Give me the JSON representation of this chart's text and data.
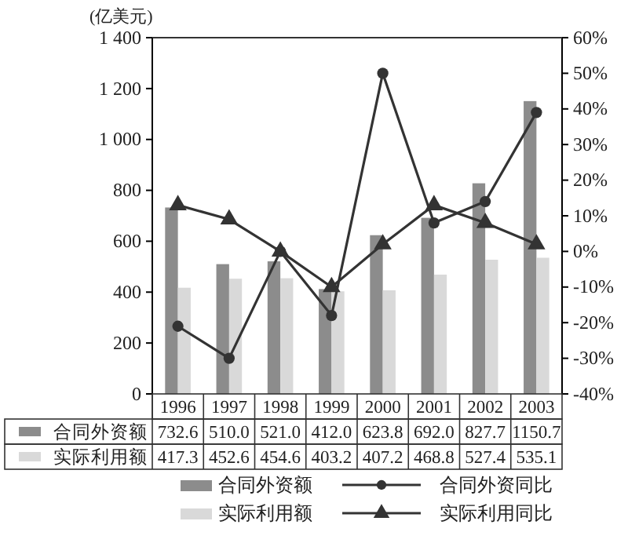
{
  "chart_data": {
    "type": "bar",
    "ylabel": "(亿美元)",
    "categories": [
      "1996",
      "1997",
      "1998",
      "1999",
      "2000",
      "2001",
      "2002",
      "2003"
    ],
    "series": [
      {
        "name": "合同外资额",
        "color": "#8c8c8c",
        "values": [
          732.6,
          510.0,
          521.0,
          412.0,
          623.8,
          692.0,
          827.7,
          1150.7
        ],
        "value_labels": [
          "732.6",
          "510.0",
          "521.0",
          "412.0",
          "623.8",
          "692.0",
          "827.7",
          "1150.7"
        ]
      },
      {
        "name": "实际利用额",
        "color": "#d9d9d9",
        "values": [
          417.3,
          452.6,
          454.6,
          403.2,
          407.2,
          468.8,
          527.4,
          535.1
        ],
        "value_labels": [
          "417.3",
          "452.6",
          "454.6",
          "403.2",
          "407.2",
          "468.8",
          "527.4",
          "535.1"
        ]
      },
      {
        "name": "合同外资同比",
        "type": "line",
        "axis": "y2",
        "marker": "circle",
        "color": "#333333",
        "values": [
          -21,
          -30,
          0,
          -18,
          50,
          8,
          14,
          39
        ]
      },
      {
        "name": "实际利用同比",
        "type": "line",
        "axis": "y2",
        "marker": "triangle",
        "color": "#333333",
        "values": [
          13,
          9,
          0,
          -10,
          2,
          13,
          8,
          2
        ]
      }
    ],
    "ylim": [
      0,
      1400
    ],
    "yticks": [
      0,
      200,
      400,
      600,
      800,
      {
        "value": 1000,
        "label": "1 000"
      },
      {
        "value": 1200,
        "label": "1 200"
      },
      {
        "value": 1400,
        "label": "1 400"
      }
    ],
    "y2lim": [
      -40,
      60
    ],
    "y2ticks": [
      {
        "value": -40,
        "label": "-40%"
      },
      {
        "value": -30,
        "label": "-30%"
      },
      {
        "value": -20,
        "label": "-20%"
      },
      {
        "value": -10,
        "label": "-10%"
      },
      {
        "value": 0,
        "label": "0%"
      },
      {
        "value": 10,
        "label": "10%"
      },
      {
        "value": 20,
        "label": "20%"
      },
      {
        "value": 30,
        "label": "30%"
      },
      {
        "value": 40,
        "label": "40%"
      },
      {
        "value": 50,
        "label": "50%"
      },
      {
        "value": 60,
        "label": "60%"
      }
    ],
    "legend": "bottom",
    "grid": false
  }
}
